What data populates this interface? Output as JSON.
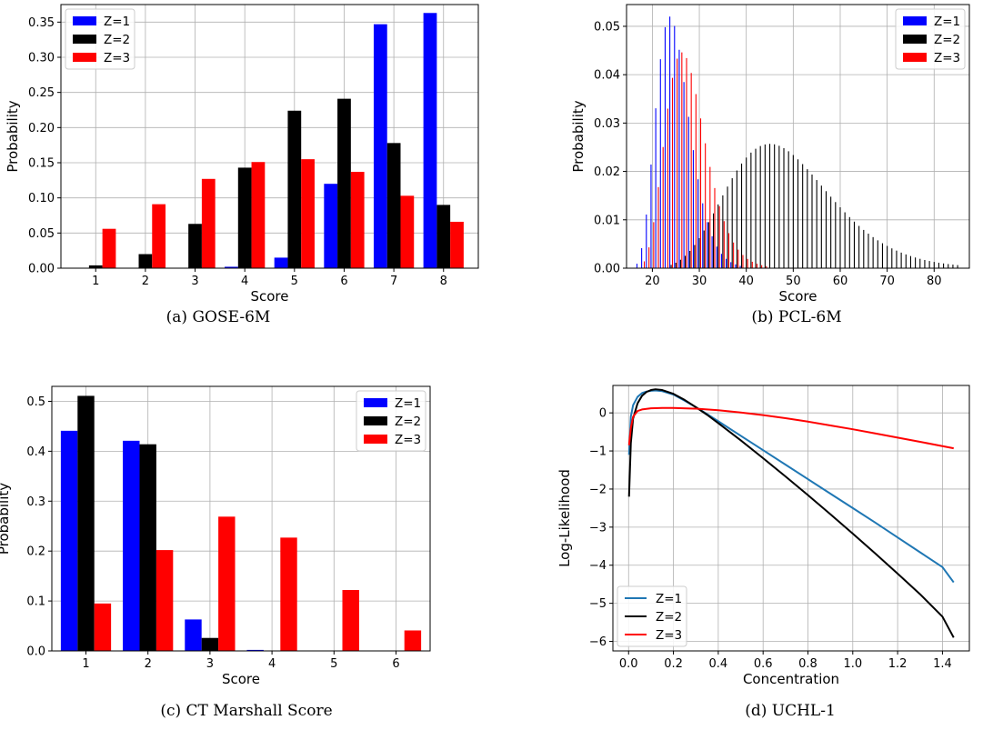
{
  "chart_data": [
    {
      "id": "a",
      "type": "bar",
      "caption": "(a) GOSE-6M",
      "xlabel": "Score",
      "ylabel": "Probability",
      "categories": [
        "1",
        "2",
        "3",
        "4",
        "5",
        "6",
        "7",
        "8"
      ],
      "xlim": [
        0.3,
        8.7
      ],
      "ylim": [
        0,
        0.375
      ],
      "yticks": [
        0.0,
        0.05,
        0.1,
        0.15,
        0.2,
        0.25,
        0.3,
        0.35
      ],
      "ytick_labels": [
        "0.00",
        "0.05",
        "0.10",
        "0.15",
        "0.20",
        "0.25",
        "0.30",
        "0.35"
      ],
      "grid": true,
      "legend_position": "top-left",
      "series": [
        {
          "name": "Z=1",
          "color": "#0000ff",
          "values": [
            0.0,
            0.0,
            0.0,
            0.002,
            0.015,
            0.12,
            0.347,
            0.363
          ]
        },
        {
          "name": "Z=2",
          "color": "#000000",
          "values": [
            0.004,
            0.02,
            0.063,
            0.143,
            0.224,
            0.241,
            0.178,
            0.09
          ]
        },
        {
          "name": "Z=3",
          "color": "#ff0000",
          "values": [
            0.056,
            0.091,
            0.127,
            0.151,
            0.155,
            0.137,
            0.103,
            0.066
          ]
        }
      ]
    },
    {
      "id": "b",
      "type": "bar",
      "caption": "(b) PCL-6M",
      "xlabel": "Score",
      "ylabel": "Probability",
      "x_range": [
        17,
        85
      ],
      "xlim": [
        14.5,
        87.5
      ],
      "ylim": [
        0,
        0.0545
      ],
      "xticks": [
        20,
        30,
        40,
        50,
        60,
        70,
        80
      ],
      "yticks": [
        0.0,
        0.01,
        0.02,
        0.03,
        0.04,
        0.05
      ],
      "ytick_labels": [
        "0.00",
        "0.01",
        "0.02",
        "0.03",
        "0.04",
        "0.05"
      ],
      "grid": true,
      "legend_position": "top-right",
      "series": [
        {
          "name": "Z=1",
          "color": "#0000ff",
          "distribution": "peaked",
          "peak_x": 24,
          "peak_y": 0.052
        },
        {
          "name": "Z=2",
          "color": "#000000",
          "distribution": "peaked",
          "peak_x": 45,
          "peak_y": 0.0257
        },
        {
          "name": "Z=3",
          "color": "#ff0000",
          "distribution": "peaked",
          "peak_x": 26,
          "peak_y": 0.0446
        }
      ]
    },
    {
      "id": "c",
      "type": "bar",
      "caption": "(c) CT Marshall Score",
      "xlabel": "Score",
      "ylabel": "Probability",
      "categories": [
        "1",
        "2",
        "3",
        "4",
        "5",
        "6"
      ],
      "xlim": [
        0.45,
        6.55
      ],
      "ylim": [
        0,
        0.53
      ],
      "yticks": [
        0.0,
        0.1,
        0.2,
        0.3,
        0.4,
        0.5
      ],
      "ytick_labels": [
        "0.0",
        "0.1",
        "0.2",
        "0.3",
        "0.4",
        "0.5"
      ],
      "grid": true,
      "legend_position": "top-right",
      "series": [
        {
          "name": "Z=1",
          "color": "#0000ff",
          "values": [
            0.441,
            0.421,
            0.063,
            0.002,
            0.0,
            0.0
          ]
        },
        {
          "name": "Z=2",
          "color": "#000000",
          "values": [
            0.511,
            0.414,
            0.026,
            0.0,
            0.0,
            0.0
          ]
        },
        {
          "name": "Z=3",
          "color": "#ff0000",
          "values": [
            0.095,
            0.202,
            0.269,
            0.227,
            0.122,
            0.041
          ]
        }
      ]
    },
    {
      "id": "d",
      "type": "line",
      "caption": "(d) UCHL-1",
      "xlabel": "Concentration",
      "ylabel": "Log-Likelihood",
      "xlim": [
        -0.07,
        1.52
      ],
      "ylim": [
        -6.25,
        0.72
      ],
      "xticks": [
        0.0,
        0.2,
        0.4,
        0.6,
        0.8,
        1.0,
        1.2,
        1.4
      ],
      "xtick_labels": [
        "0.0",
        "0.2",
        "0.4",
        "0.6",
        "0.8",
        "1.0",
        "1.2",
        "1.4"
      ],
      "yticks": [
        0,
        -1,
        -2,
        -3,
        -4,
        -5,
        -6
      ],
      "ytick_labels": [
        "0",
        "−1",
        "−2",
        "−3",
        "−4",
        "−5",
        "−6"
      ],
      "grid": true,
      "legend_position": "bottom-left",
      "series": [
        {
          "name": "Z=1",
          "color": "#1f77b4",
          "x": [
            0.002,
            0.01,
            0.02,
            0.04,
            0.06,
            0.08,
            0.1,
            0.12,
            0.15,
            0.2,
            0.25,
            0.3,
            0.35,
            0.4,
            0.5,
            0.6,
            0.7,
            0.8,
            0.9,
            1.0,
            1.1,
            1.2,
            1.3,
            1.4,
            1.45
          ],
          "y": [
            -1.1,
            -0.1,
            0.2,
            0.42,
            0.52,
            0.56,
            0.58,
            0.59,
            0.57,
            0.48,
            0.32,
            0.15,
            -0.03,
            -0.22,
            -0.6,
            -0.98,
            -1.36,
            -1.74,
            -2.12,
            -2.5,
            -2.88,
            -3.27,
            -3.66,
            -4.05,
            -4.45
          ]
        },
        {
          "name": "Z=2",
          "color": "#000000",
          "x": [
            0.002,
            0.01,
            0.02,
            0.04,
            0.06,
            0.08,
            0.1,
            0.12,
            0.15,
            0.2,
            0.25,
            0.3,
            0.35,
            0.4,
            0.5,
            0.6,
            0.7,
            0.8,
            0.9,
            1.0,
            1.1,
            1.2,
            1.3,
            1.4,
            1.45
          ],
          "y": [
            -2.2,
            -0.8,
            -0.15,
            0.25,
            0.45,
            0.55,
            0.6,
            0.62,
            0.6,
            0.5,
            0.34,
            0.15,
            -0.05,
            -0.27,
            -0.72,
            -1.19,
            -1.67,
            -2.16,
            -2.66,
            -3.17,
            -3.69,
            -4.22,
            -4.76,
            -5.35,
            -5.9
          ]
        },
        {
          "name": "Z=3",
          "color": "#ff0000",
          "x": [
            0.002,
            0.01,
            0.02,
            0.04,
            0.06,
            0.1,
            0.15,
            0.2,
            0.3,
            0.4,
            0.5,
            0.6,
            0.7,
            0.8,
            0.9,
            1.0,
            1.1,
            1.2,
            1.3,
            1.45
          ],
          "y": [
            -0.85,
            -0.4,
            -0.1,
            0.05,
            0.09,
            0.12,
            0.13,
            0.13,
            0.11,
            0.07,
            0.01,
            -0.06,
            -0.14,
            -0.23,
            -0.33,
            -0.43,
            -0.54,
            -0.65,
            -0.76,
            -0.93
          ]
        }
      ]
    }
  ]
}
